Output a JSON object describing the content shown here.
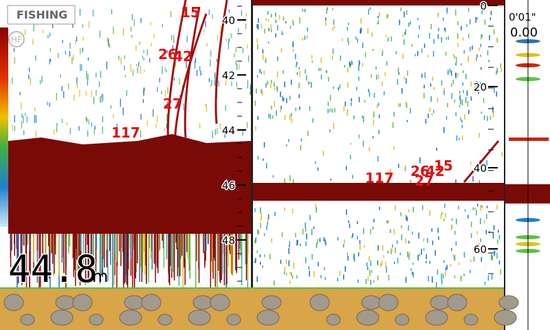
{
  "mode_label": "FISHING",
  "frequency_badge": "HF",
  "left_panel": {
    "depth_scale": [
      40,
      42,
      44,
      46,
      48
    ],
    "fish_marks": [
      "15",
      "26",
      "42",
      "27",
      "117"
    ],
    "depth_readout": {
      "value": "44.8",
      "unit": "m"
    }
  },
  "right_panel": {
    "depth_scale": [
      0,
      20,
      40,
      60
    ],
    "fish_marks": [
      "117",
      "26",
      "42",
      "15",
      "27"
    ]
  },
  "status": {
    "time": "0'01\"",
    "value": "0.00"
  }
}
